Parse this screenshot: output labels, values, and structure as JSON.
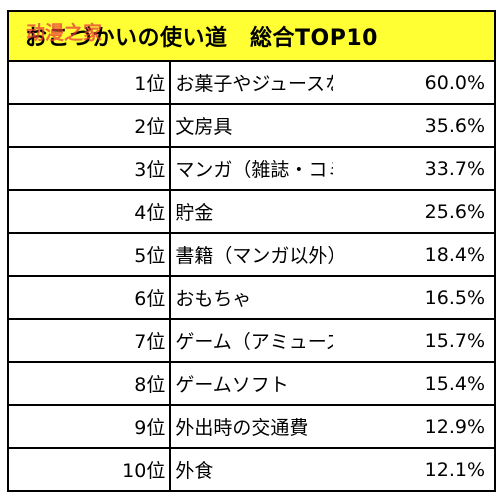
{
  "watermark": "动漫之家",
  "chart_data": {
    "type": "table",
    "title": "おこづかいの使い道　総合TOP10",
    "rows": [
      {
        "rank": "1位",
        "item": "お菓子やジュースなどの飲食物",
        "value": "60.0%"
      },
      {
        "rank": "2位",
        "item": "文房具",
        "value": "35.6%"
      },
      {
        "rank": "3位",
        "item": "マンガ（雑誌・コミック）",
        "value": "33.7%"
      },
      {
        "rank": "4位",
        "item": "貯金",
        "value": "25.6%"
      },
      {
        "rank": "5位",
        "item": "書籍（マンガ以外）",
        "value": "18.4%"
      },
      {
        "rank": "6位",
        "item": "おもちゃ",
        "value": "16.5%"
      },
      {
        "rank": "7位",
        "item": "ゲーム（アミューズメント施設内）",
        "value": "15.7%"
      },
      {
        "rank": "8位",
        "item": "ゲームソフト",
        "value": "15.4%"
      },
      {
        "rank": "9位",
        "item": "外出時の交通費",
        "value": "12.9%"
      },
      {
        "rank": "10位",
        "item": "外食",
        "value": "12.1%"
      }
    ]
  },
  "colors": {
    "header_background": "#ffff33",
    "watermark": "#e93a3a",
    "border": "#000000"
  }
}
